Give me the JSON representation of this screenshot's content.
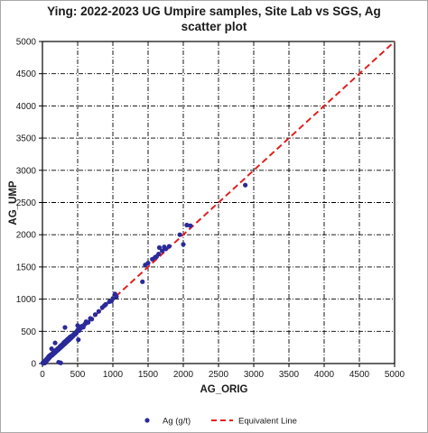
{
  "chart_data": {
    "type": "scatter",
    "title_line1": "Ying: 2022-2023 UG Umpire samples, Site Lab vs SGS, Ag",
    "title_line2": "scatter plot",
    "xlabel": "AG_ORIG",
    "ylabel": "AG_UMP",
    "xlim": [
      0,
      5000
    ],
    "ylim": [
      0,
      5000
    ],
    "xticks": [
      0,
      500,
      1000,
      1500,
      2000,
      2500,
      3000,
      3500,
      4000,
      4500,
      5000
    ],
    "yticks": [
      0,
      500,
      1000,
      1500,
      2000,
      2500,
      3000,
      3500,
      4000,
      4500,
      5000
    ],
    "grid": "dash-dot",
    "legend_position": "bottom",
    "series": [
      {
        "name": "Ag (g/t)",
        "kind": "points",
        "color": "#2a2a9a",
        "points": [
          [
            5,
            10
          ],
          [
            10,
            5
          ],
          [
            15,
            20
          ],
          [
            20,
            12
          ],
          [
            25,
            30
          ],
          [
            30,
            22
          ],
          [
            35,
            8
          ],
          [
            40,
            45
          ],
          [
            45,
            35
          ],
          [
            50,
            55
          ],
          [
            55,
            40
          ],
          [
            60,
            70
          ],
          [
            65,
            50
          ],
          [
            70,
            80
          ],
          [
            75,
            60
          ],
          [
            80,
            95
          ],
          [
            85,
            75
          ],
          [
            90,
            110
          ],
          [
            95,
            85
          ],
          [
            100,
            120
          ],
          [
            105,
            100
          ],
          [
            110,
            130
          ],
          [
            120,
            115
          ],
          [
            125,
            140
          ],
          [
            130,
            125
          ],
          [
            140,
            150
          ],
          [
            145,
            135
          ],
          [
            150,
            165
          ],
          [
            160,
            155
          ],
          [
            165,
            180
          ],
          [
            170,
            160
          ],
          [
            180,
            190
          ],
          [
            185,
            175
          ],
          [
            190,
            205
          ],
          [
            200,
            195
          ],
          [
            205,
            215
          ],
          [
            210,
            200
          ],
          [
            215,
            230
          ],
          [
            220,
            210
          ],
          [
            230,
            240
          ],
          [
            235,
            225
          ],
          [
            240,
            250
          ],
          [
            245,
            235
          ],
          [
            250,
            265
          ],
          [
            255,
            245
          ],
          [
            260,
            275
          ],
          [
            270,
            260
          ],
          [
            275,
            290
          ],
          [
            280,
            270
          ],
          [
            290,
            300
          ],
          [
            295,
            285
          ],
          [
            300,
            320
          ],
          [
            305,
            295
          ],
          [
            310,
            330
          ],
          [
            320,
            310
          ],
          [
            325,
            345
          ],
          [
            330,
            320
          ],
          [
            340,
            355
          ],
          [
            345,
            335
          ],
          [
            350,
            370
          ],
          [
            360,
            350
          ],
          [
            365,
            385
          ],
          [
            370,
            360
          ],
          [
            380,
            395
          ],
          [
            385,
            375
          ],
          [
            390,
            410
          ],
          [
            400,
            390
          ],
          [
            405,
            420
          ],
          [
            410,
            400
          ],
          [
            420,
            430
          ],
          [
            430,
            420
          ],
          [
            440,
            445
          ],
          [
            450,
            460
          ],
          [
            460,
            450
          ],
          [
            470,
            480
          ],
          [
            480,
            470
          ],
          [
            490,
            500
          ],
          [
            500,
            520
          ],
          [
            520,
            510
          ],
          [
            540,
            545
          ],
          [
            560,
            580
          ],
          [
            580,
            565
          ],
          [
            600,
            610
          ],
          [
            620,
            630
          ],
          [
            650,
            640
          ],
          [
            680,
            700
          ],
          [
            700,
            690
          ],
          [
            750,
            760
          ],
          [
            800,
            810
          ],
          [
            850,
            870
          ],
          [
            880,
            900
          ],
          [
            900,
            920
          ],
          [
            950,
            960
          ],
          [
            980,
            970
          ],
          [
            1000,
            1010
          ],
          [
            1030,
            1080
          ],
          [
            1050,
            1040
          ],
          [
            130,
            230
          ],
          [
            180,
            320
          ],
          [
            230,
            20
          ],
          [
            260,
            10
          ],
          [
            320,
            560
          ],
          [
            500,
            590
          ],
          [
            510,
            370
          ],
          [
            620,
            650
          ],
          [
            1420,
            1270
          ],
          [
            1460,
            1530
          ],
          [
            1500,
            1560
          ],
          [
            1560,
            1620
          ],
          [
            1600,
            1650
          ],
          [
            1650,
            1700
          ],
          [
            1700,
            1750
          ],
          [
            1750,
            1780
          ],
          [
            1800,
            1820
          ],
          [
            1950,
            2000
          ],
          [
            2000,
            1850
          ],
          [
            2050,
            2150
          ],
          [
            2100,
            2140
          ],
          [
            1660,
            1800
          ],
          [
            1730,
            1810
          ],
          [
            1620,
            1660
          ],
          [
            2880,
            2770
          ]
        ]
      },
      {
        "name": "Equivalent Line",
        "kind": "line",
        "color": "#e02020",
        "x": [
          0,
          5000
        ],
        "y": [
          0,
          5000
        ]
      }
    ]
  }
}
